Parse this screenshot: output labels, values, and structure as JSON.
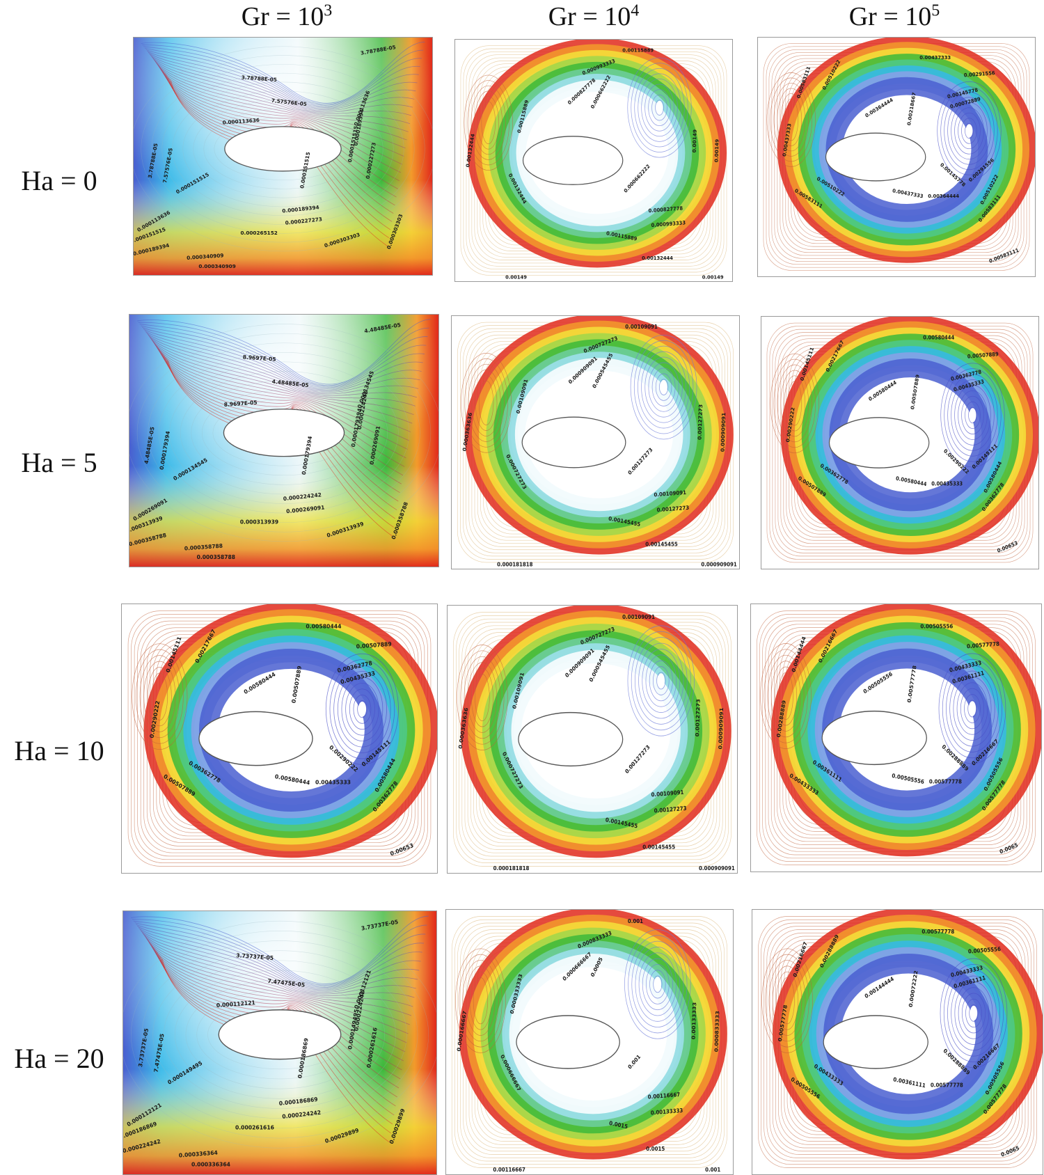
{
  "columns": [
    {
      "base": "Gr = 10",
      "exp": "3"
    },
    {
      "base": "Gr = 10",
      "exp": "4"
    },
    {
      "base": "Gr = 10",
      "exp": "5"
    }
  ],
  "rows": [
    "Ha = 0",
    "Ha = 5",
    "Ha = 10",
    "Ha = 20"
  ],
  "colors": {
    "blue": "#4a5fd0",
    "cyan": "#35b8e8",
    "green": "#3cb83a",
    "yellow": "#f4e23a",
    "orange": "#f39a2b",
    "red": "#e12a1c",
    "contour_line": "#c0603a",
    "border": "#9a9a9a"
  },
  "panels": [
    {
      "type": "A",
      "labels": [
        "3.78788E-05",
        "3.78788E-05",
        "7.57576E-05",
        "0.000113636",
        "0.000113636",
        "0.000151515",
        "0.000151515",
        "0.000151515",
        "0.000189394",
        "0.000189394",
        "0.000227273",
        "0.000227273",
        "0.000265152",
        "0.000303303",
        "0.000303303",
        "0.000340909",
        "0.000340909",
        "3.78788E-05",
        "7.57576E-05",
        "0.000113636",
        "0.000151515",
        "0.000189394"
      ]
    },
    {
      "type": "B",
      "labels": [
        "0.00115889",
        "0.000993333",
        "0.000827778",
        "0.000662222",
        "0.00132444",
        "0.00115889",
        "0.00132444",
        "0.00149",
        "0.000662222",
        "0.000827778",
        "0.000993333",
        "0.00115889",
        "0.00132444",
        "0.00149",
        "0.00149",
        "0.00149"
      ]
    },
    {
      "type": "C",
      "labels": [
        "0.00437333",
        "0.00291556",
        "0.00145778",
        "0.00072889",
        "0.00510222",
        "0.00583111",
        "0.00364444",
        "0.00218667",
        "0.00437333",
        "0.00510222",
        "0.00583111",
        "0.00437333",
        "0.00364444",
        "0.00145778",
        "0.00291556",
        "0.00510222",
        "0.00583111",
        "0.00583111"
      ]
    },
    {
      "type": "A",
      "labels": [
        "4.48485E-05",
        "8.9697E-05",
        "4.48485E-05",
        "8.9697E-05",
        "0.000134545",
        "0.000134545",
        "0.000179394",
        "0.000179394",
        "0.000224242",
        "0.000224242",
        "0.000269091",
        "0.000269091",
        "0.000313939",
        "0.000313939",
        "0.000358788",
        "0.000358788",
        "0.000358788",
        "4.48485E-05",
        "0.000179394",
        "0.000269091",
        "0.000313939",
        "0.000358788"
      ]
    },
    {
      "type": "B",
      "labels": [
        "0.00109091",
        "0.000727273",
        "0.000909091",
        "0.000545455",
        "0.000363636",
        "0.00109091",
        "0.000727273",
        "0.000909091",
        "0.00127273",
        "0.00109091",
        "0.00127273",
        "0.00145455",
        "0.00145455",
        "0.000181818",
        "0.000909091",
        "0.00127273"
      ]
    },
    {
      "type": "C",
      "labels": [
        "0.00580444",
        "0.00507889",
        "0.00362778",
        "0.00435333",
        "0.00217667",
        "0.00145111",
        "0.00580444",
        "0.00507889",
        "0.00290222",
        "0.00362778",
        "0.00507889",
        "0.00580444",
        "0.00435333",
        "0.00290222",
        "0.00145111",
        "0.00580444",
        "0.00362778",
        "0.00653"
      ]
    },
    {
      "type": "C",
      "labels": [
        "0.00580444",
        "0.00507889",
        "0.00362778",
        "0.00435333",
        "0.00217667",
        "0.00145111",
        "0.00580444",
        "0.00507889",
        "0.00290222",
        "0.00362778",
        "0.00507889",
        "0.00580444",
        "0.00435333",
        "0.00290222",
        "0.00145111",
        "0.00580444",
        "0.00362778",
        "0.00653"
      ]
    },
    {
      "type": "B",
      "labels": [
        "0.00109091",
        "0.000727273",
        "0.000909091",
        "0.000545455",
        "0.000363636",
        "0.00109091",
        "0.000727273",
        "0.000909091",
        "0.00127273",
        "0.00109091",
        "0.00127273",
        "0.00145455",
        "0.00145455",
        "0.000181818",
        "0.000909091",
        "0.00127273"
      ]
    },
    {
      "type": "C",
      "labels": [
        "0.00505556",
        "0.00577778",
        "0.00433333",
        "0.00361111",
        "0.00216667",
        "0.00144444",
        "0.00505556",
        "0.00577778",
        "0.00288889",
        "0.00361111",
        "0.00433333",
        "0.00505556",
        "0.00577778",
        "0.00288889",
        "0.00216667",
        "0.00505556",
        "0.00577778",
        "0.0065"
      ]
    },
    {
      "type": "A",
      "labels": [
        "3.73737E-05",
        "3.73737E-05",
        "7.47475E-05",
        "0.000112121",
        "0.000112121",
        "0.000149495",
        "0.000149495",
        "0.000186869",
        "0.000186869",
        "0.000224242",
        "0.000224242",
        "0.000261616",
        "0.000261616",
        "0.00029899",
        "0.00029899",
        "0.000336364",
        "0.000336364",
        "3.73737E-05",
        "7.47475E-05",
        "0.000112121",
        "0.000186869",
        "0.000224242"
      ]
    },
    {
      "type": "B",
      "labels": [
        "0.001",
        "0.000833333",
        "0.000666667",
        "0.0005",
        "0.000166667",
        "0.000333333",
        "0.000666667",
        "0.000833333",
        "0.001",
        "0.00116667",
        "0.00133333",
        "0.0015",
        "0.0015",
        "0.00116667",
        "0.001",
        "0.00133333"
      ]
    },
    {
      "type": "C",
      "labels": [
        "0.00577778",
        "0.00505556",
        "0.00433333",
        "0.00361111",
        "0.00288889",
        "0.00216667",
        "0.00144444",
        "0.00072222",
        "0.00577778",
        "0.00433333",
        "0.00505556",
        "0.00361111",
        "0.00577778",
        "0.00288889",
        "0.00216667",
        "0.00505556",
        "0.00577778",
        "0.0065"
      ]
    }
  ]
}
